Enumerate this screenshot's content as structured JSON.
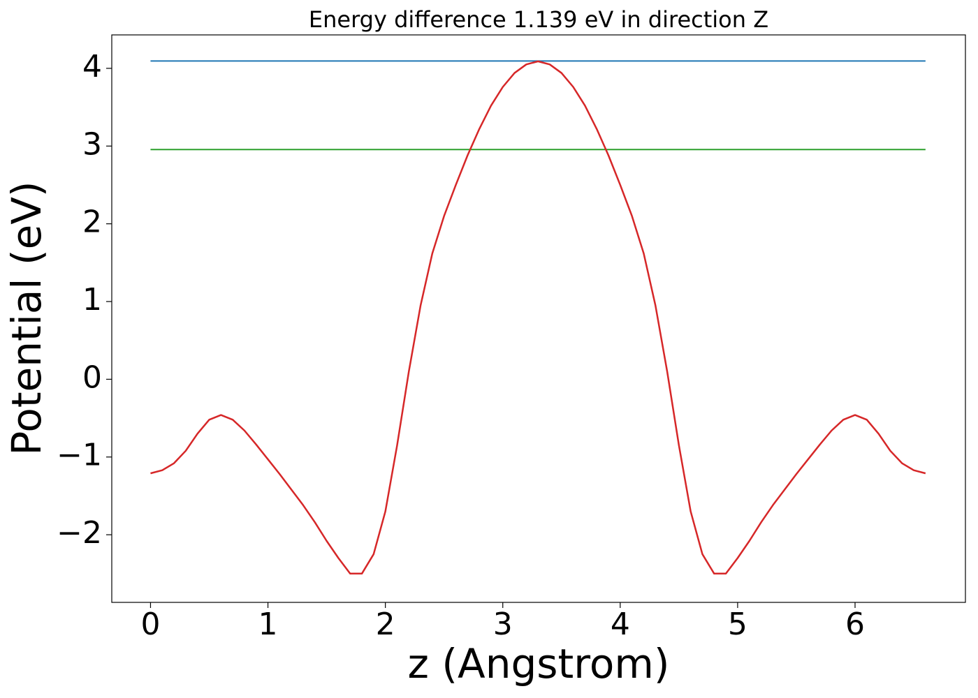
{
  "chart_data": {
    "type": "line",
    "title": "Energy difference 1.139 eV in direction Z",
    "xlabel": "z (Angstrom)",
    "ylabel": "Potential (eV)",
    "xlim": [
      -0.33,
      6.94
    ],
    "ylim": [
      -2.87,
      4.43
    ],
    "xticks": [
      0,
      1,
      2,
      3,
      4,
      5,
      6
    ],
    "yticks": [
      {
        "value": -2,
        "label": "−2"
      },
      {
        "value": -1,
        "label": "−1"
      },
      0,
      1,
      2,
      3,
      4
    ],
    "series": [
      {
        "color": "#1f77b4",
        "x": [
          0,
          6.6
        ],
        "values": [
          4.094,
          4.094
        ]
      },
      {
        "color": "#2ca02c",
        "x": [
          0,
          6.6
        ],
        "values": [
          2.955,
          2.955
        ]
      },
      {
        "color": "#d62728",
        "x": [
          0,
          0.1,
          0.2,
          0.3,
          0.4,
          0.5,
          0.6,
          0.7,
          0.8,
          0.9,
          1.0,
          1.1,
          1.2,
          1.3,
          1.4,
          1.5,
          1.6,
          1.7,
          1.8,
          1.9,
          2.0,
          2.1,
          2.2,
          2.3,
          2.4,
          2.5,
          2.6,
          2.7,
          2.8,
          2.9,
          3.0,
          3.1,
          3.2,
          3.3,
          3.4,
          3.5,
          3.6,
          3.7,
          3.8,
          3.9,
          4.0,
          4.1,
          4.2,
          4.3,
          4.4,
          4.5,
          4.6,
          4.7,
          4.8,
          4.9,
          5.0,
          5.1,
          5.2,
          5.3,
          5.4,
          5.5,
          5.6,
          5.7,
          5.8,
          5.9,
          6.0,
          6.1,
          6.2,
          6.3,
          6.4,
          6.5,
          6.6
        ],
        "values": [
          -1.21,
          -1.17,
          -1.08,
          -0.92,
          -0.7,
          -0.52,
          -0.46,
          -0.52,
          -0.66,
          -0.84,
          -1.03,
          -1.22,
          -1.42,
          -1.62,
          -1.84,
          -2.08,
          -2.3,
          -2.5,
          -2.5,
          -2.25,
          -1.7,
          -0.85,
          0.1,
          0.95,
          1.62,
          2.1,
          2.5,
          2.88,
          3.22,
          3.52,
          3.76,
          3.94,
          4.05,
          4.09,
          4.05,
          3.94,
          3.76,
          3.52,
          3.22,
          2.88,
          2.5,
          2.1,
          1.62,
          0.95,
          0.1,
          -0.85,
          -1.7,
          -2.25,
          -2.5,
          -2.5,
          -2.3,
          -2.08,
          -1.84,
          -1.62,
          -1.42,
          -1.22,
          -1.03,
          -0.84,
          -0.66,
          -0.52,
          -0.46,
          -0.52,
          -0.7,
          -0.92,
          -1.08,
          -1.17,
          -1.21
        ]
      }
    ]
  }
}
